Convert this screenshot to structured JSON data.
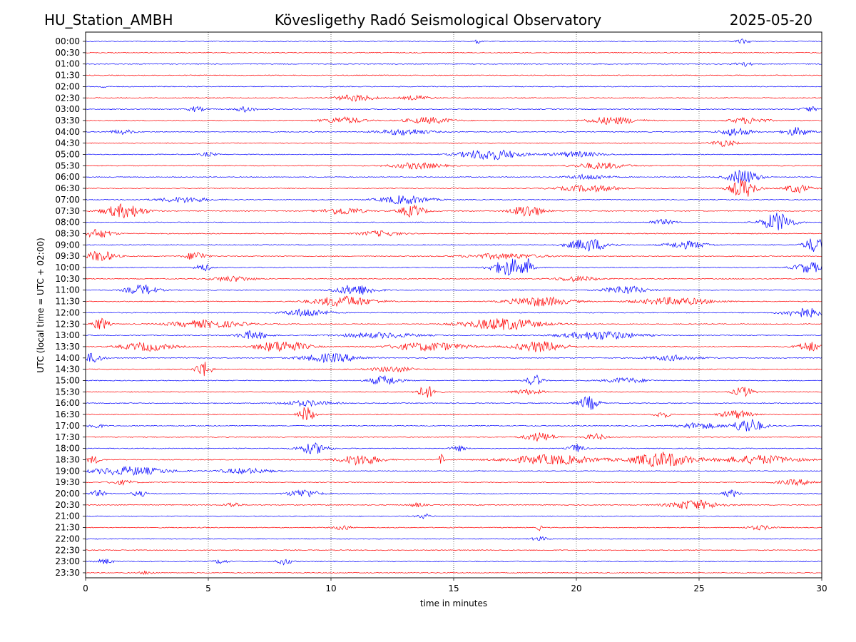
{
  "header": {
    "station": "HU_Station_AMBH",
    "observatory": "Kövesligethy Radó Seismological Observatory",
    "date": "2025-05-20"
  },
  "chart_data": {
    "type": "line",
    "title": "Kövesligethy Radó Seismological Observatory",
    "xlabel": "time in minutes",
    "ylabel": "UTC (local time = UTC + 02:00)",
    "xlim": [
      0,
      30
    ],
    "x_ticks": [
      "0",
      "5",
      "10",
      "15",
      "20",
      "25",
      "30"
    ],
    "vertical_gridlines_at": [
      5,
      10,
      15,
      20,
      25
    ],
    "trace_colors": [
      "#0000ff",
      "#ff0000"
    ],
    "rows": [
      {
        "label": "00:00",
        "bursts": [
          {
            "t": 16.0,
            "a": 0.5,
            "w": 0.1
          },
          {
            "t": 26.8,
            "a": 0.4,
            "w": 0.3
          }
        ]
      },
      {
        "label": "00:30",
        "bursts": []
      },
      {
        "label": "01:00",
        "bursts": [
          {
            "t": 26.8,
            "a": 0.5,
            "w": 0.3
          }
        ]
      },
      {
        "label": "01:30",
        "bursts": []
      },
      {
        "label": "02:00",
        "bursts": [
          {
            "t": 0.7,
            "a": 0.4,
            "w": 0.1
          }
        ]
      },
      {
        "label": "02:30",
        "bursts": [
          {
            "t": 11,
            "a": 0.6,
            "w": 0.8
          },
          {
            "t": 13.5,
            "a": 0.4,
            "w": 0.6
          }
        ]
      },
      {
        "label": "03:00",
        "bursts": [
          {
            "t": 4.5,
            "a": 0.5,
            "w": 0.3
          },
          {
            "t": 6.5,
            "a": 0.5,
            "w": 0.4
          },
          {
            "t": 29.5,
            "a": 0.5,
            "w": 0.3
          }
        ]
      },
      {
        "label": "03:30",
        "bursts": [
          {
            "t": 10.5,
            "a": 0.6,
            "w": 0.8
          },
          {
            "t": 14,
            "a": 0.6,
            "w": 0.9
          },
          {
            "t": 21.5,
            "a": 0.7,
            "w": 1.0
          },
          {
            "t": 27,
            "a": 0.6,
            "w": 0.7
          }
        ]
      },
      {
        "label": "04:00",
        "bursts": [
          {
            "t": 1.5,
            "a": 0.4,
            "w": 0.5
          },
          {
            "t": 13,
            "a": 0.6,
            "w": 1.0
          },
          {
            "t": 26.5,
            "a": 0.8,
            "w": 0.6
          },
          {
            "t": 29,
            "a": 0.8,
            "w": 0.5
          }
        ]
      },
      {
        "label": "04:30",
        "bursts": [
          {
            "t": 26,
            "a": 0.6,
            "w": 0.5
          }
        ]
      },
      {
        "label": "05:00",
        "bursts": [
          {
            "t": 16.5,
            "a": 1.0,
            "w": 1.2
          },
          {
            "t": 5,
            "a": 0.4,
            "w": 0.3
          },
          {
            "t": 20,
            "a": 0.5,
            "w": 1.0
          }
        ]
      },
      {
        "label": "05:30",
        "bursts": [
          {
            "t": 13.5,
            "a": 0.6,
            "w": 1.0
          },
          {
            "t": 21,
            "a": 0.6,
            "w": 1.0
          }
        ]
      },
      {
        "label": "06:00",
        "bursts": [
          {
            "t": 26.8,
            "a": 1.4,
            "w": 0.6
          },
          {
            "t": 20.5,
            "a": 0.5,
            "w": 0.8
          }
        ]
      },
      {
        "label": "06:30",
        "bursts": [
          {
            "t": 26.8,
            "a": 1.8,
            "w": 0.5
          },
          {
            "t": 29,
            "a": 0.8,
            "w": 0.5
          },
          {
            "t": 20.5,
            "a": 0.6,
            "w": 1.2
          }
        ]
      },
      {
        "label": "07:00",
        "bursts": [
          {
            "t": 13,
            "a": 0.8,
            "w": 1.0
          },
          {
            "t": 4,
            "a": 0.5,
            "w": 1.0
          }
        ]
      },
      {
        "label": "07:30",
        "bursts": [
          {
            "t": 1.6,
            "a": 1.3,
            "w": 0.8
          },
          {
            "t": 13.3,
            "a": 1.1,
            "w": 0.5
          },
          {
            "t": 18,
            "a": 1.2,
            "w": 0.6
          },
          {
            "t": 10.5,
            "a": 0.7,
            "w": 0.8
          }
        ]
      },
      {
        "label": "08:00",
        "bursts": [
          {
            "t": 28.2,
            "a": 1.8,
            "w": 0.6
          },
          {
            "t": 23.5,
            "a": 0.5,
            "w": 0.5
          }
        ]
      },
      {
        "label": "08:30",
        "bursts": [
          {
            "t": 0.5,
            "a": 0.8,
            "w": 0.6
          },
          {
            "t": 12,
            "a": 0.5,
            "w": 0.8
          }
        ]
      },
      {
        "label": "09:00",
        "bursts": [
          {
            "t": 20.5,
            "a": 1.2,
            "w": 0.8
          },
          {
            "t": 29.7,
            "a": 1.4,
            "w": 0.4
          },
          {
            "t": 24.5,
            "a": 0.7,
            "w": 0.8
          }
        ]
      },
      {
        "label": "09:30",
        "bursts": [
          {
            "t": 0.6,
            "a": 1.0,
            "w": 0.6
          },
          {
            "t": 4.5,
            "a": 0.9,
            "w": 0.4
          },
          {
            "t": 17,
            "a": 0.5,
            "w": 1.5
          }
        ]
      },
      {
        "label": "10:00",
        "bursts": [
          {
            "t": 17.3,
            "a": 1.6,
            "w": 0.7
          },
          {
            "t": 18,
            "a": 1.4,
            "w": 0.15
          },
          {
            "t": 4.8,
            "a": 0.7,
            "w": 0.3
          },
          {
            "t": 29.5,
            "a": 1.0,
            "w": 0.6
          }
        ]
      },
      {
        "label": "10:30",
        "bursts": [
          {
            "t": 6,
            "a": 0.5,
            "w": 0.8
          },
          {
            "t": 20,
            "a": 0.5,
            "w": 0.8
          }
        ]
      },
      {
        "label": "11:00",
        "bursts": [
          {
            "t": 2.3,
            "a": 1.0,
            "w": 0.6
          },
          {
            "t": 11,
            "a": 1.0,
            "w": 0.8
          },
          {
            "t": 22,
            "a": 0.8,
            "w": 0.8
          }
        ]
      },
      {
        "label": "11:30",
        "bursts": [
          {
            "t": 10.5,
            "a": 1.0,
            "w": 1.2
          },
          {
            "t": 18.5,
            "a": 0.9,
            "w": 1.2
          },
          {
            "t": 24,
            "a": 0.7,
            "w": 1.5
          }
        ]
      },
      {
        "label": "12:00",
        "bursts": [
          {
            "t": 9,
            "a": 0.8,
            "w": 0.8
          },
          {
            "t": 29.3,
            "a": 0.9,
            "w": 0.8
          }
        ]
      },
      {
        "label": "12:30",
        "bursts": [
          {
            "t": 0.6,
            "a": 1.2,
            "w": 0.3
          },
          {
            "t": 17,
            "a": 1.1,
            "w": 1.5
          },
          {
            "t": 5,
            "a": 0.7,
            "w": 1.5
          }
        ]
      },
      {
        "label": "13:00",
        "bursts": [
          {
            "t": 6.8,
            "a": 0.8,
            "w": 0.6
          },
          {
            "t": 21,
            "a": 0.8,
            "w": 1.5
          },
          {
            "t": 12,
            "a": 0.5,
            "w": 1.5
          }
        ]
      },
      {
        "label": "13:30",
        "bursts": [
          {
            "t": 8,
            "a": 1.1,
            "w": 1.0
          },
          {
            "t": 18.5,
            "a": 1.0,
            "w": 1.0
          },
          {
            "t": 14,
            "a": 0.8,
            "w": 1.5
          },
          {
            "t": 2.5,
            "a": 0.8,
            "w": 1.0
          },
          {
            "t": 29.5,
            "a": 0.9,
            "w": 0.5
          }
        ]
      },
      {
        "label": "14:00",
        "bursts": [
          {
            "t": 0.3,
            "a": 0.9,
            "w": 0.4
          },
          {
            "t": 10,
            "a": 0.8,
            "w": 1.2
          },
          {
            "t": 24,
            "a": 0.5,
            "w": 1.0
          }
        ]
      },
      {
        "label": "14:30",
        "bursts": [
          {
            "t": 4.8,
            "a": 1.5,
            "w": 0.3
          },
          {
            "t": 12.5,
            "a": 0.5,
            "w": 0.8
          }
        ]
      },
      {
        "label": "15:00",
        "bursts": [
          {
            "t": 12.2,
            "a": 0.9,
            "w": 0.6
          },
          {
            "t": 18.3,
            "a": 1.1,
            "w": 0.3
          },
          {
            "t": 22,
            "a": 0.5,
            "w": 0.8
          }
        ]
      },
      {
        "label": "15:30",
        "bursts": [
          {
            "t": 13.9,
            "a": 1.1,
            "w": 0.4
          },
          {
            "t": 26.8,
            "a": 0.9,
            "w": 0.4
          },
          {
            "t": 18,
            "a": 0.5,
            "w": 0.6
          }
        ]
      },
      {
        "label": "16:00",
        "bursts": [
          {
            "t": 20.5,
            "a": 1.3,
            "w": 0.4
          },
          {
            "t": 9,
            "a": 0.5,
            "w": 1.0
          }
        ]
      },
      {
        "label": "16:30",
        "bursts": [
          {
            "t": 9.0,
            "a": 1.5,
            "w": 0.3
          },
          {
            "t": 26.5,
            "a": 0.8,
            "w": 0.6
          },
          {
            "t": 23.5,
            "a": 0.6,
            "w": 0.3
          }
        ]
      },
      {
        "label": "17:00",
        "bursts": [
          {
            "t": 27,
            "a": 1.4,
            "w": 0.6
          },
          {
            "t": 0.4,
            "a": 0.5,
            "w": 0.3
          },
          {
            "t": 25,
            "a": 0.6,
            "w": 0.8
          }
        ]
      },
      {
        "label": "17:30",
        "bursts": [
          {
            "t": 18.5,
            "a": 0.8,
            "w": 0.6
          },
          {
            "t": 20.8,
            "a": 0.6,
            "w": 0.4
          }
        ]
      },
      {
        "label": "18:00",
        "bursts": [
          {
            "t": 9.3,
            "a": 1.0,
            "w": 0.6
          },
          {
            "t": 20,
            "a": 0.8,
            "w": 0.3
          },
          {
            "t": 15.2,
            "a": 0.5,
            "w": 0.3
          }
        ]
      },
      {
        "label": "18:30",
        "bursts": [
          {
            "t": 23.5,
            "a": 1.4,
            "w": 1.2
          },
          {
            "t": 11.2,
            "a": 1.0,
            "w": 0.8
          },
          {
            "t": 14.5,
            "a": 1.1,
            "w": 0.1
          },
          {
            "t": 19,
            "a": 0.9,
            "w": 1.8
          },
          {
            "t": 27.5,
            "a": 0.8,
            "w": 1.5
          },
          {
            "t": 0.3,
            "a": 0.7,
            "w": 0.3
          }
        ]
      },
      {
        "label": "19:00",
        "bursts": [
          {
            "t": 1.8,
            "a": 0.8,
            "w": 1.5
          },
          {
            "t": 6.5,
            "a": 0.5,
            "w": 1.0
          }
        ]
      },
      {
        "label": "19:30",
        "bursts": [
          {
            "t": 29,
            "a": 0.5,
            "w": 0.8
          },
          {
            "t": 1.5,
            "a": 0.4,
            "w": 0.5
          }
        ]
      },
      {
        "label": "20:00",
        "bursts": [
          {
            "t": 0.5,
            "a": 0.6,
            "w": 0.3
          },
          {
            "t": 8.9,
            "a": 0.8,
            "w": 0.6
          },
          {
            "t": 26.3,
            "a": 0.7,
            "w": 0.3
          },
          {
            "t": 2.2,
            "a": 0.5,
            "w": 0.3
          }
        ]
      },
      {
        "label": "20:30",
        "bursts": [
          {
            "t": 24.8,
            "a": 0.9,
            "w": 1.0
          },
          {
            "t": 6,
            "a": 0.5,
            "w": 0.3
          },
          {
            "t": 13.5,
            "a": 0.4,
            "w": 0.3
          }
        ]
      },
      {
        "label": "21:00",
        "bursts": [
          {
            "t": 13.8,
            "a": 0.4,
            "w": 0.3
          }
        ]
      },
      {
        "label": "21:30",
        "bursts": [
          {
            "t": 10.5,
            "a": 0.5,
            "w": 0.3
          },
          {
            "t": 18.5,
            "a": 0.5,
            "w": 0.1
          },
          {
            "t": 27.5,
            "a": 0.4,
            "w": 0.5
          }
        ]
      },
      {
        "label": "22:00",
        "bursts": [
          {
            "t": 18.5,
            "a": 0.4,
            "w": 0.3
          }
        ]
      },
      {
        "label": "22:30",
        "bursts": []
      },
      {
        "label": "23:00",
        "bursts": [
          {
            "t": 0.8,
            "a": 0.5,
            "w": 0.3
          },
          {
            "t": 8.1,
            "a": 0.6,
            "w": 0.3
          },
          {
            "t": 5.5,
            "a": 0.4,
            "w": 0.3
          }
        ]
      },
      {
        "label": "23:30",
        "bursts": [
          {
            "t": 2.5,
            "a": 0.3,
            "w": 0.3
          }
        ]
      }
    ]
  }
}
